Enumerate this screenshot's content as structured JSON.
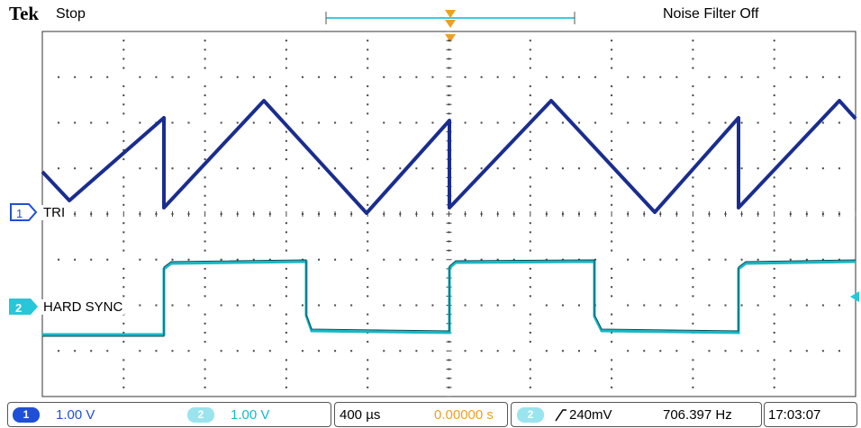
{
  "header": {
    "brand": "Tek",
    "acquisition_state": "Stop",
    "noise_filter": "Noise Filter Off"
  },
  "channels": [
    {
      "number": "1",
      "label": "TRI",
      "scale": "1.00 V",
      "color": "#1a2d8f",
      "badge_color": "#1f4fd6"
    },
    {
      "number": "2",
      "label": "HARD SYNC",
      "scale": "1.00 V",
      "color": "#16b8c8",
      "badge_color": "#25c7d8"
    }
  ],
  "timebase": {
    "scale": "400 µs",
    "position": "0.00000 s"
  },
  "trigger": {
    "source": "2",
    "level": "240mV",
    "frequency": "706.397 Hz",
    "slope_icon": "rising-edge-icon"
  },
  "clock": "17:03:07",
  "colors": {
    "grid": "#444444",
    "trigger_marker": "#f0a020",
    "record_bar": "#40c8e0"
  }
}
